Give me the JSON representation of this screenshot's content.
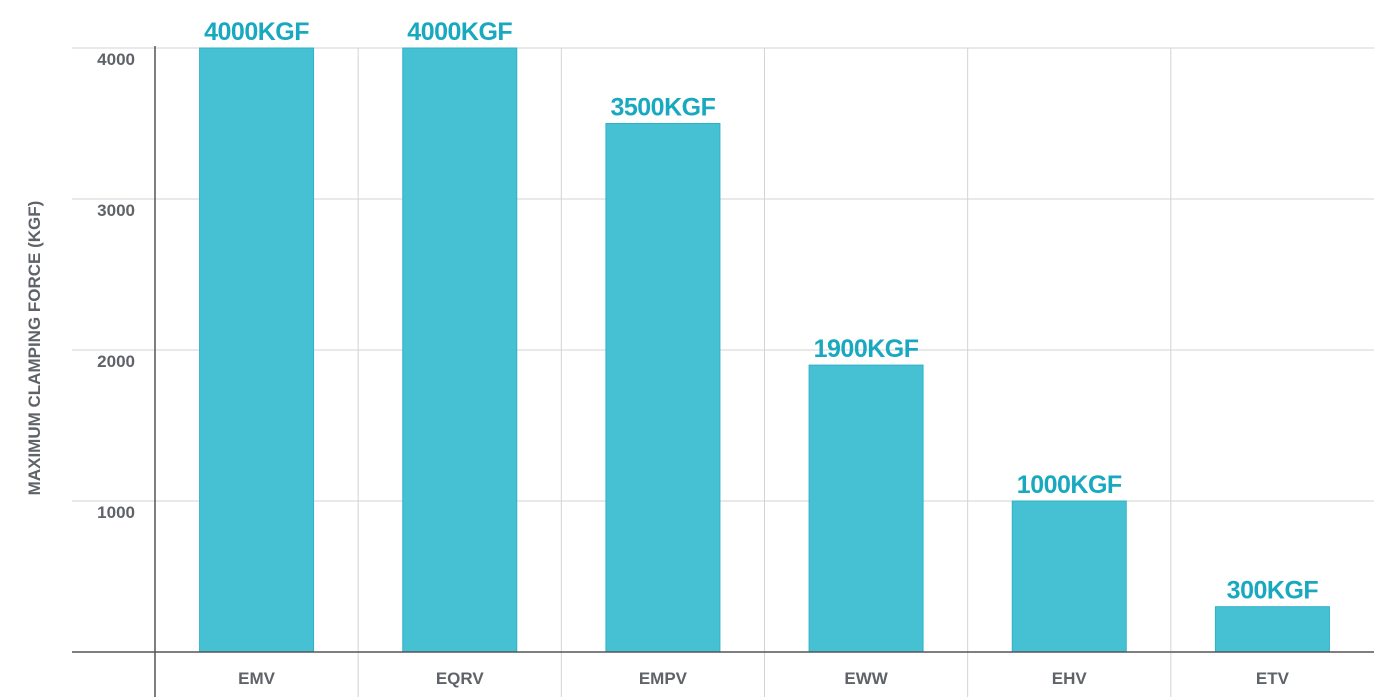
{
  "colors": {
    "bar": "#46c1d4",
    "bar_stroke": "#2fb1c6",
    "data_label": "#18a9c1",
    "grid": "#d3d3d3",
    "axis": "#555555",
    "text": "#5f6368"
  },
  "chart_data": {
    "type": "bar",
    "title": "",
    "xlabel": "",
    "ylabel": "MAXIMUM CLAMPING FORCE (KGF)",
    "categories": [
      "EMV",
      "EQRV",
      "EMPV",
      "EWW",
      "EHV",
      "ETV"
    ],
    "values": [
      4000,
      4000,
      3500,
      1900,
      1000,
      300
    ],
    "data_labels": [
      "4000KGF",
      "4000KGF",
      "3500KGF",
      "1900KGF",
      "1000KGF",
      "300KGF"
    ],
    "ylim": [
      0,
      4000
    ],
    "yticks": [
      1000,
      2000,
      3000,
      4000
    ],
    "grid": true,
    "legend": "none"
  }
}
